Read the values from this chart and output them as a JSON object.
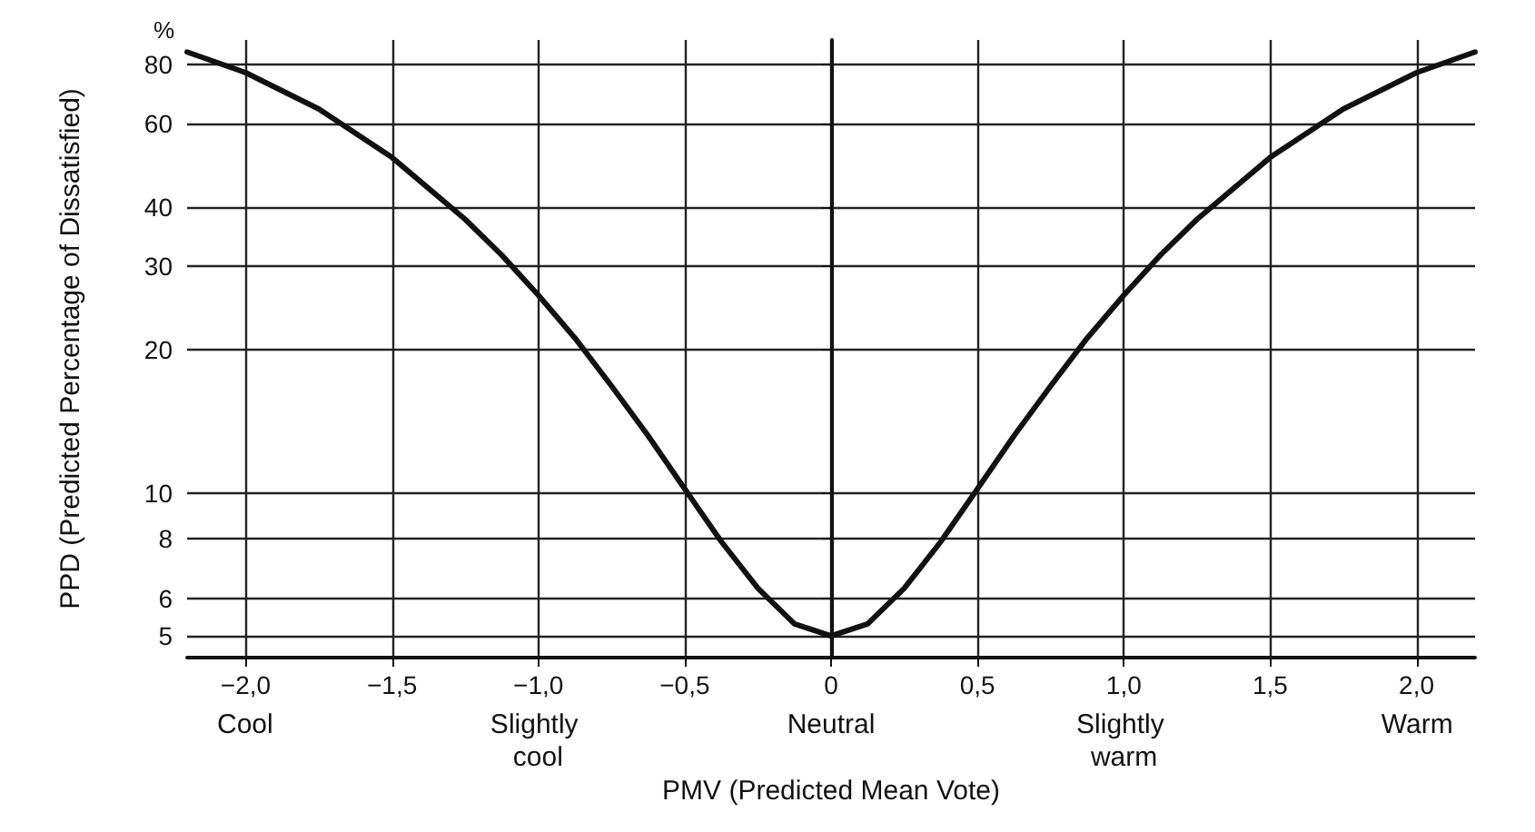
{
  "chart_data": {
    "type": "line",
    "xlabel": "PMV (Predicted Mean Vote)",
    "ylabel": "PPD (Predicted Percentage of Dissatisfied)",
    "log": "y",
    "grid": true,
    "marker": "none",
    "line_style": "solid",
    "x": [
      -2.2,
      -2,
      -1.75,
      -1.5,
      -1.25,
      -1.125,
      -1,
      -0.875,
      -0.75,
      -0.625,
      -0.5,
      -0.375,
      -0.25,
      -0.125,
      0,
      0.125,
      0.25,
      0.375,
      0.5,
      0.625,
      0.75,
      0.875,
      1,
      1.125,
      1.25,
      1.5,
      1.75,
      2,
      2.2
    ],
    "series": [
      {
        "color": "#111111",
        "values": [
          84.9,
          76.8,
          64.4,
          50.9,
          37.7,
          31.7,
          26.1,
          21.2,
          16.8,
          13.2,
          10.2,
          7.9,
          6.3,
          5.3,
          5,
          5.3,
          6.3,
          7.9,
          10.2,
          13.2,
          16.8,
          21.2,
          26.1,
          31.7,
          37.7,
          50.9,
          64.4,
          76.8,
          84.9
        ]
      }
    ],
    "xlim": [
      -2.2,
      2.2
    ],
    "xticks": [
      {
        "value": -2,
        "label": "−2,0"
      },
      {
        "value": -1.5,
        "label": "−1,5"
      },
      {
        "value": -1,
        "label": "−1,0"
      },
      {
        "value": -0.5,
        "label": "−0,5"
      },
      0,
      {
        "value": 0.5,
        "label": "0,5"
      },
      {
        "value": 1,
        "label": "1,0"
      },
      {
        "value": 1.5,
        "label": "1,5"
      },
      {
        "value": 2,
        "label": "2,0"
      }
    ],
    "ylim": [
      4.5,
      90
    ],
    "yticks": [
      5,
      6,
      8,
      10,
      20,
      30,
      40,
      60,
      80
    ],
    "annotations": [
      "%",
      "Cool",
      "Slightly cool",
      "Neutral",
      "Slightly warm",
      "Warm"
    ]
  }
}
